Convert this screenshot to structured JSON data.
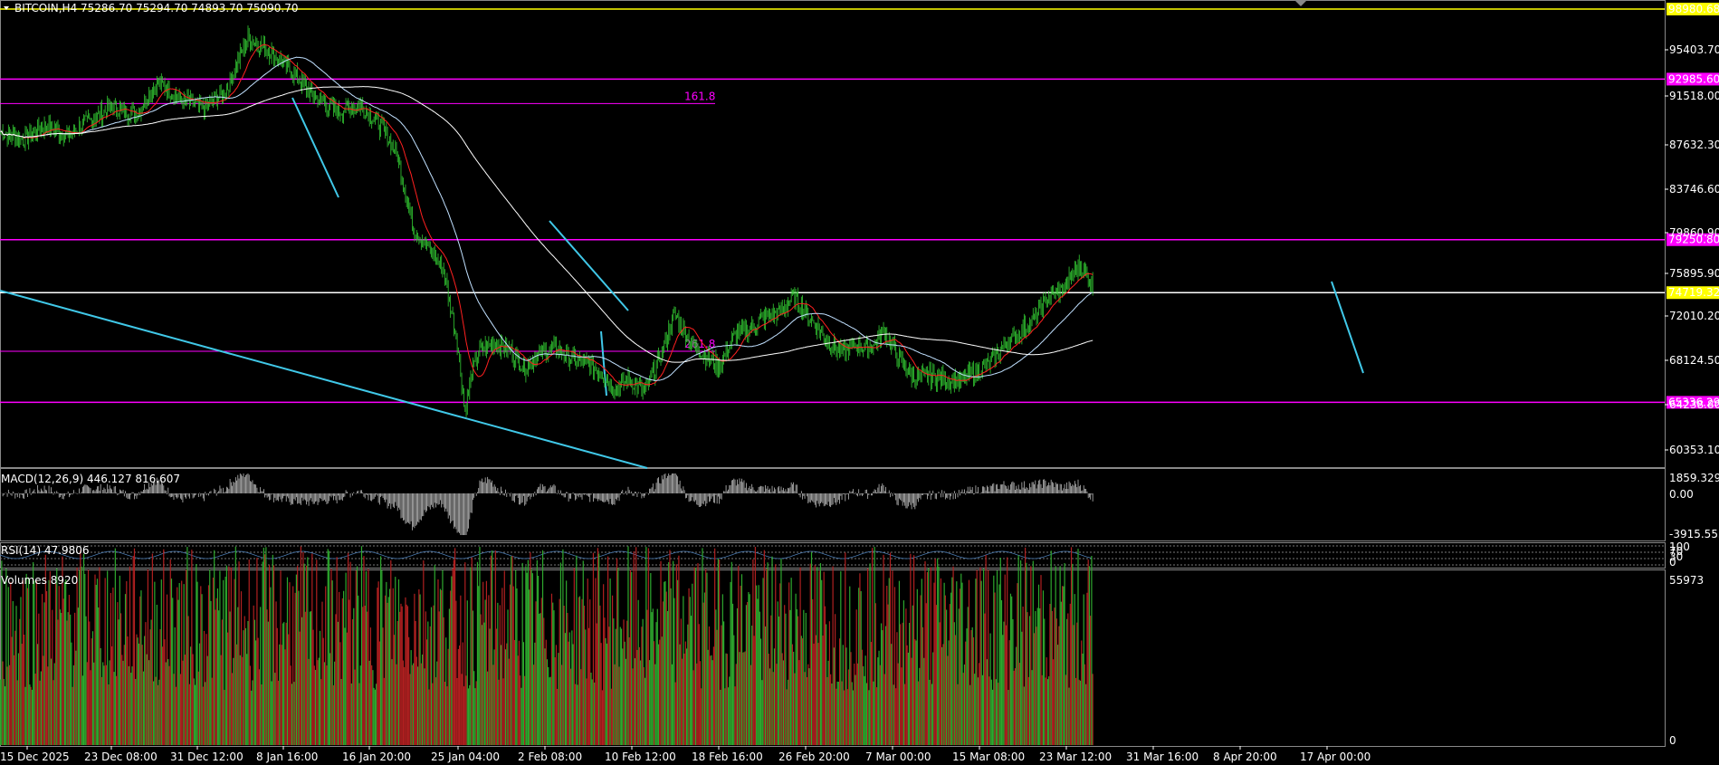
{
  "header": {
    "symbol_line": "BITCOIN,H4  75286.70 75294.70 74893.70 75090.70"
  },
  "colors": {
    "background": "#000000",
    "candle": "#33cc33",
    "level_magenta": "#ff00ff",
    "level_yellow": "#ffff00",
    "trend_cyan": "#40c8e8",
    "ma_fast": "#ff2020",
    "ma_mid": "#c0e0ff",
    "ma_slow": "#ffffff",
    "volume_up": "#2ea82e",
    "volume_down": "#b02020"
  },
  "chart_data": {
    "type": "candlestick",
    "price_axis": {
      "ticks": [
        "95403.70",
        "91518.00",
        "87632.30",
        "83746.60",
        "79860.90",
        "75895.90",
        "72010.20",
        "68124.50",
        "64238.80",
        "60353.10"
      ],
      "range": [
        58700,
        99500
      ]
    },
    "time_axis": {
      "ticks": [
        "15 Dec 2025",
        "23 Dec 08:00",
        "31 Dec 12:00",
        "8 Jan 16:00",
        "16 Jan 20:00",
        "25 Jan 04:00",
        "2 Feb 08:00",
        "10 Feb 12:00",
        "18 Feb 16:00",
        "26 Feb 20:00",
        "7 Mar 00:00",
        "15 Mar 08:00",
        "23 Mar 12:00",
        "31 Mar 16:00",
        "8 Apr 20:00",
        "17 Apr 00:00"
      ]
    },
    "price_levels": [
      {
        "price": 98980.68,
        "label": "98980.68",
        "color": "#ffff00"
      },
      {
        "price": 92985.6,
        "label": "92985.60",
        "color": "#ff00ff"
      },
      {
        "price": 79250.8,
        "label": "79250.80",
        "color": "#ff00ff"
      },
      {
        "price": 74719.32,
        "label": "74719.32",
        "color": "#ffffff"
      },
      {
        "price": 65336.29,
        "label": "65336.29",
        "color": "#ff00ff"
      }
    ],
    "fib_levels": [
      {
        "price": 90900,
        "label": "161.8"
      },
      {
        "price": 69700,
        "label": "261.8"
      }
    ],
    "close_path": [
      [
        0,
        88500
      ],
      [
        3,
        87800
      ],
      [
        6,
        89000
      ],
      [
        9,
        88200
      ],
      [
        12,
        89500
      ],
      [
        15,
        90600
      ],
      [
        18,
        89900
      ],
      [
        21,
        92800
      ],
      [
        24,
        91200
      ],
      [
        27,
        90500
      ],
      [
        30,
        91800
      ],
      [
        33,
        96500
      ],
      [
        36,
        95400
      ],
      [
        39,
        93500
      ],
      [
        42,
        91500
      ],
      [
        45,
        90200
      ],
      [
        48,
        90800
      ],
      [
        51,
        88800
      ],
      [
        53,
        86500
      ],
      [
        55,
        80500
      ],
      [
        57,
        78600
      ],
      [
        59,
        77000
      ],
      [
        61,
        70500
      ],
      [
        62,
        64500
      ],
      [
        63,
        68000
      ],
      [
        64,
        69800
      ],
      [
        66,
        70400
      ],
      [
        68,
        69800
      ],
      [
        70,
        68300
      ],
      [
        72,
        69500
      ],
      [
        74,
        70000
      ],
      [
        76,
        69200
      ],
      [
        78,
        68700
      ],
      [
        80,
        68100
      ],
      [
        82,
        66500
      ],
      [
        84,
        67400
      ],
      [
        86,
        66100
      ],
      [
        88,
        69100
      ],
      [
        90,
        72900
      ],
      [
        92,
        70600
      ],
      [
        94,
        69400
      ],
      [
        96,
        68400
      ],
      [
        98,
        71100
      ],
      [
        100,
        71700
      ],
      [
        102,
        72600
      ],
      [
        104,
        73000
      ],
      [
        106,
        74400
      ],
      [
        108,
        72600
      ],
      [
        110,
        71000
      ],
      [
        112,
        69600
      ],
      [
        114,
        70200
      ],
      [
        116,
        69900
      ],
      [
        118,
        71400
      ],
      [
        120,
        69100
      ],
      [
        122,
        67400
      ],
      [
        124,
        67600
      ],
      [
        126,
        67400
      ],
      [
        128,
        67100
      ],
      [
        130,
        67900
      ],
      [
        132,
        68600
      ],
      [
        134,
        70200
      ],
      [
        136,
        71300
      ],
      [
        138,
        72500
      ],
      [
        140,
        74300
      ],
      [
        142,
        75100
      ],
      [
        144,
        77000
      ],
      [
        145,
        76300
      ],
      [
        146,
        75100
      ]
    ],
    "macd": {
      "label": "MACD(12,26,9) 446.127 816.607",
      "ticks": [
        "1859.329",
        "0.00",
        "-3915.555"
      ]
    },
    "rsi": {
      "label": "RSI(14) 47.9806",
      "ticks": [
        "100",
        "70",
        "30",
        "0"
      ]
    },
    "volumes": {
      "label": "Volumes 8920",
      "ticks": [
        "55973",
        "0"
      ]
    }
  }
}
